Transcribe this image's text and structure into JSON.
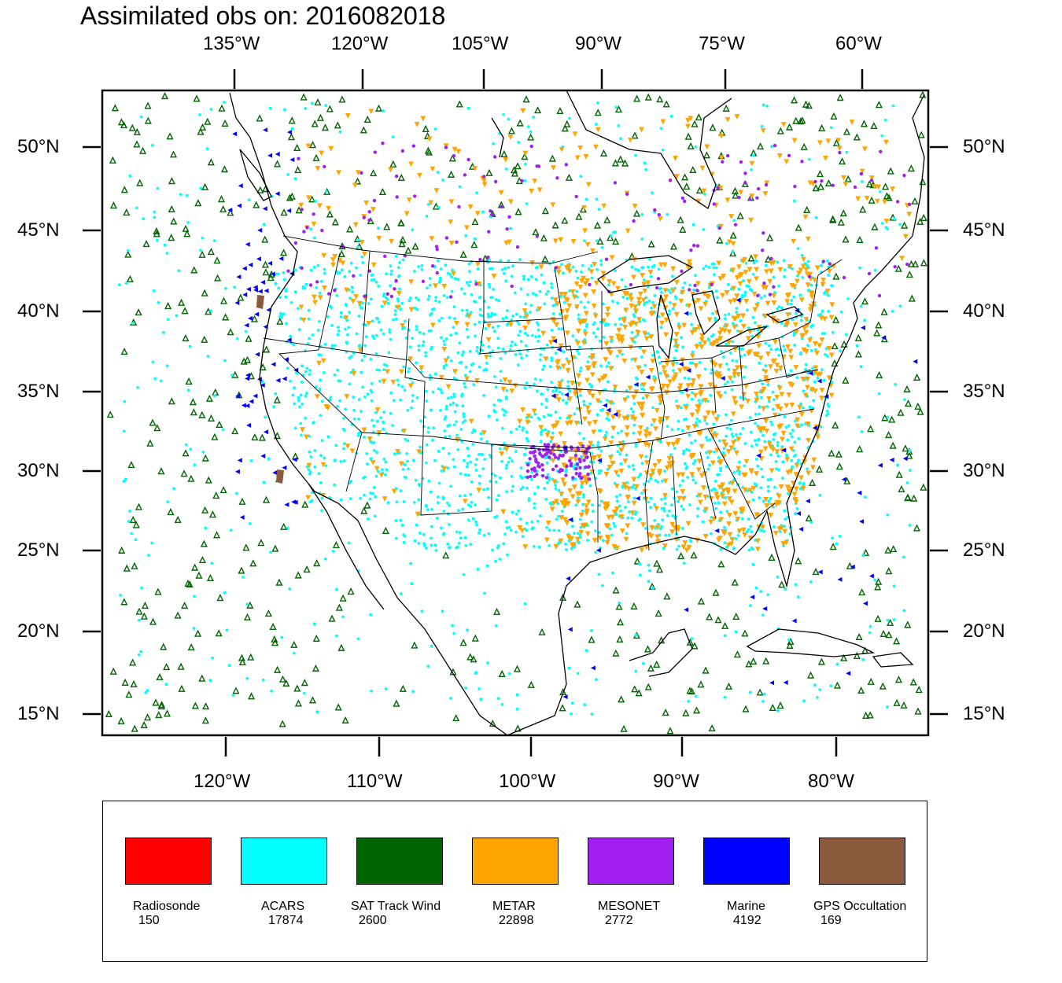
{
  "title": "Assimilated obs on: 2016082018",
  "map": {
    "top_lon_labels": [
      "135°W",
      "120°W",
      "105°W",
      "90°W",
      "75°W",
      "60°W"
    ],
    "bottom_lon_labels": [
      "120°W",
      "110°W",
      "100°W",
      "90°W",
      "80°W"
    ],
    "left_lat_labels": [
      "50°N",
      "45°N",
      "40°N",
      "35°N",
      "30°N",
      "25°N",
      "20°N",
      "15°N"
    ],
    "right_lat_labels": [
      "50°N",
      "45°N",
      "40°N",
      "35°N",
      "30°N",
      "25°N",
      "20°N",
      "15°N"
    ],
    "lat_range": [
      14,
      54
    ],
    "lon_range": [
      -127,
      -73
    ]
  },
  "legend": {
    "items": [
      {
        "label": "Radiosonde",
        "count": "150",
        "color": "#ff0000"
      },
      {
        "label": "ACARS",
        "count": "17874",
        "color": "#00ffff"
      },
      {
        "label": "SAT Track Wind",
        "count": "2600",
        "color": "#006400"
      },
      {
        "label": "METAR",
        "count": "22898",
        "color": "#ffa500"
      },
      {
        "label": "MESONET",
        "count": "2772",
        "color": "#a020f0"
      },
      {
        "label": "Marine",
        "count": "4192",
        "color": "#0000ff"
      },
      {
        "label": "GPS Occultation",
        "count": "169",
        "color": "#8b5a3c"
      }
    ]
  }
}
